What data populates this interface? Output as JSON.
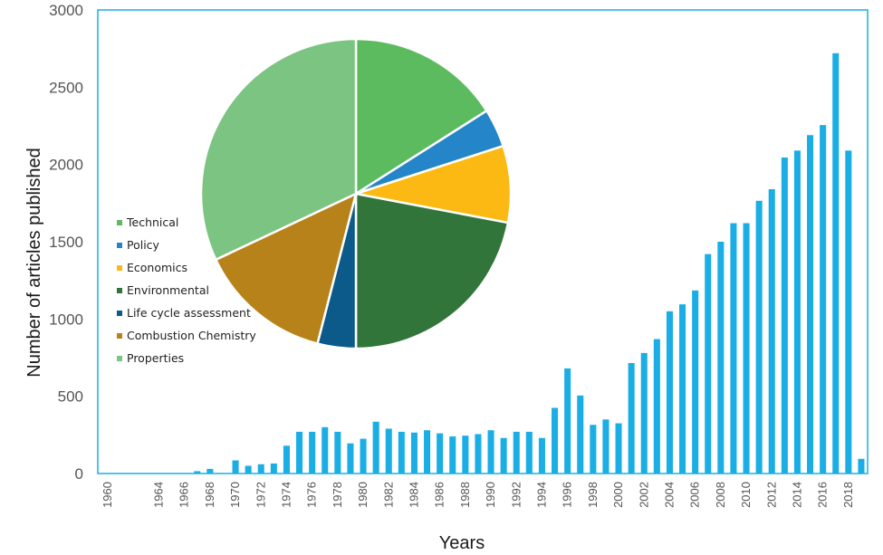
{
  "chart_data": [
    {
      "type": "bar",
      "title": "",
      "xlabel": "Years",
      "ylabel": "Number of articles published",
      "ylim": [
        0,
        3000
      ],
      "y_ticks": [
        0,
        500,
        1000,
        1500,
        2000,
        2500,
        3000
      ],
      "x_tick_labels": [
        "1960",
        "1964",
        "1966",
        "1968",
        "1970",
        "1972",
        "1974",
        "1976",
        "1978",
        "1980",
        "1982",
        "1984",
        "1986",
        "1988",
        "1990",
        "1992",
        "1994",
        "1996",
        "1998",
        "2000",
        "2002",
        "2004",
        "2006",
        "2008",
        "2010",
        "2012",
        "2014",
        "2016",
        "2018"
      ],
      "bar_color": "#1aaee5",
      "categories": [
        1960,
        1961,
        1962,
        1963,
        1964,
        1965,
        1966,
        1967,
        1968,
        1969,
        1970,
        1971,
        1972,
        1973,
        1974,
        1975,
        1976,
        1977,
        1978,
        1979,
        1980,
        1981,
        1982,
        1983,
        1984,
        1985,
        1986,
        1987,
        1988,
        1989,
        1990,
        1991,
        1992,
        1993,
        1994,
        1995,
        1996,
        1997,
        1998,
        1999,
        2000,
        2001,
        2002,
        2003,
        2004,
        2005,
        2006,
        2007,
        2008,
        2009,
        2010,
        2011,
        2012,
        2013,
        2014,
        2015,
        2016,
        2017,
        2018,
        2019
      ],
      "values": [
        0,
        0,
        0,
        0,
        0,
        0,
        0,
        15,
        30,
        0,
        85,
        50,
        60,
        65,
        180,
        270,
        270,
        300,
        270,
        195,
        225,
        335,
        290,
        270,
        265,
        280,
        260,
        240,
        245,
        255,
        280,
        230,
        270,
        270,
        230,
        425,
        680,
        505,
        315,
        350,
        325,
        715,
        780,
        870,
        1050,
        1095,
        1185,
        1420,
        1500,
        1620,
        1620,
        1765,
        1840,
        2045,
        2090,
        2190,
        2255,
        2720,
        2090,
        95
      ]
    },
    {
      "type": "pie",
      "legend_position": "left",
      "slices": [
        {
          "label": "Technical",
          "value": 16,
          "color": "#5dbb5f"
        },
        {
          "label": "Policy",
          "value": 4,
          "color": "#2485c8"
        },
        {
          "label": "Economics",
          "value": 8,
          "color": "#fdb913"
        },
        {
          "label": "Environmental",
          "value": 22,
          "color": "#32753b"
        },
        {
          "label": "Life cycle assessment",
          "value": 4,
          "color": "#0b5a8a"
        },
        {
          "label": "Combustion Chemistry",
          "value": 14,
          "color": "#b8821b"
        },
        {
          "label": "Properties",
          "value": 32,
          "color": "#7cc481"
        }
      ]
    }
  ]
}
